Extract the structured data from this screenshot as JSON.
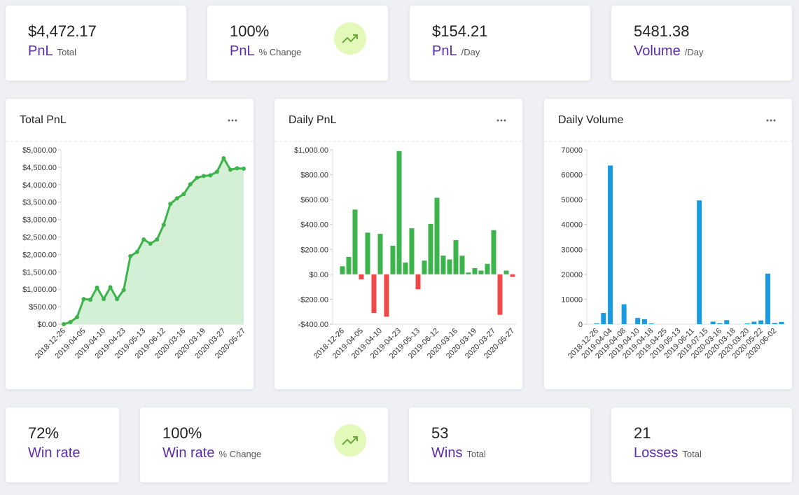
{
  "cards": [
    {
      "value": "$4,472.17",
      "label": "PnL",
      "sublabel": "Total"
    },
    {
      "value": "100%",
      "label": "PnL",
      "sublabel": "% Change",
      "icon": "trend-up"
    },
    {
      "value": "$154.21",
      "label": "PnL",
      "sublabel": "/Day"
    },
    {
      "value": "5481.38",
      "label": "Volume",
      "sublabel": "/Day"
    },
    {
      "value": "72%",
      "label": "Win rate"
    },
    {
      "value": "100%",
      "label": "Win rate",
      "sublabel": "% Change",
      "icon": "trend-up"
    },
    {
      "value": "53",
      "label": "Wins",
      "sublabel": "Total"
    },
    {
      "value": "21",
      "label": "Losses",
      "sublabel": "Total"
    }
  ],
  "chart_data": [
    {
      "type": "line",
      "title": "Total PnL",
      "color": "#3cb44b",
      "fill": "#d3f0d6",
      "categories": [
        "2018-12-26",
        null,
        null,
        "2019-04-05",
        null,
        null,
        "2019-04-10",
        null,
        null,
        "2019-04-23",
        null,
        null,
        "2019-05-13",
        null,
        null,
        "2019-06-12",
        null,
        null,
        "2020-03-16",
        null,
        null,
        "2020-03-19",
        null,
        null,
        "2020-03-27",
        null,
        null,
        "2020-05-27"
      ],
      "values": [
        0,
        60,
        200,
        720,
        700,
        1050,
        720,
        1060,
        720,
        980,
        1950,
        2070,
        2430,
        2310,
        2430,
        2850,
        3450,
        3610,
        3730,
        4010,
        4200,
        4250,
        4270,
        4370,
        4760,
        4430,
        4470,
        4460
      ],
      "ylim": [
        0,
        5000
      ],
      "yticks": [
        {
          "value": 0,
          "label": "$0.00"
        },
        {
          "value": 500,
          "label": "$500.00"
        },
        {
          "value": 1000,
          "label": "$1,000.00"
        },
        {
          "value": 1500,
          "label": "$1,500.00"
        },
        {
          "value": 2000,
          "label": "$2,000.00"
        },
        {
          "value": 2500,
          "label": "$2,500.00"
        },
        {
          "value": 3000,
          "label": "$3,000.00"
        },
        {
          "value": 3500,
          "label": "$3,500.00"
        },
        {
          "value": 4000,
          "label": "$4,000.00"
        },
        {
          "value": 4500,
          "label": "$4,500.00"
        },
        {
          "value": 5000,
          "label": "$5,000.00"
        }
      ]
    },
    {
      "type": "bar",
      "title": "Daily PnL",
      "color": "#3cb44b",
      "negative_color": "#f04848",
      "categories": [
        "2018-12-26",
        null,
        null,
        "2019-04-05",
        null,
        null,
        "2019-04-10",
        null,
        null,
        "2019-04-23",
        null,
        null,
        "2019-05-13",
        null,
        null,
        "2019-06-12",
        null,
        null,
        "2020-03-16",
        null,
        null,
        "2020-03-19",
        null,
        null,
        "2020-03-27",
        null,
        null,
        "2020-05-27"
      ],
      "values": [
        65,
        140,
        520,
        -40,
        335,
        -310,
        325,
        -340,
        230,
        990,
        95,
        370,
        -120,
        110,
        405,
        615,
        150,
        120,
        275,
        150,
        15,
        50,
        30,
        85,
        355,
        -325,
        30,
        -20
      ],
      "ylim": [
        -400,
        1000
      ],
      "yticks": [
        {
          "value": -400,
          "label": "-$400.00"
        },
        {
          "value": -200,
          "label": "-$200.00"
        },
        {
          "value": 0,
          "label": "$0.00"
        },
        {
          "value": 200,
          "label": "$200.00"
        },
        {
          "value": 400,
          "label": "$400.00"
        },
        {
          "value": 600,
          "label": "$600.00"
        },
        {
          "value": 800,
          "label": "$800.00"
        },
        {
          "value": 1000,
          "label": "$1,000.00"
        }
      ]
    },
    {
      "type": "bar",
      "title": "Daily Volume",
      "color": "#1a9ae0",
      "categories": [
        "2018-12-26",
        null,
        "2019-04-04",
        null,
        "2019-04-08",
        null,
        "2019-04-10",
        null,
        "2019-04-18",
        null,
        "2019-04-25",
        null,
        "2019-05-13",
        null,
        "2019-06-11",
        null,
        "2019-07-15",
        null,
        "2020-03-16",
        null,
        "2020-03-18",
        null,
        "2020-03-20",
        null,
        "2020-05-22",
        null,
        "2020-06-02",
        null
      ],
      "values": [
        300,
        4500,
        63700,
        0,
        8000,
        0,
        2500,
        2000,
        300,
        0,
        0,
        0,
        0,
        0,
        0,
        49700,
        0,
        1000,
        400,
        1600,
        0,
        0,
        300,
        1000,
        1500,
        20300,
        500,
        900
      ],
      "ylim": [
        0,
        70000
      ],
      "yticks": [
        0,
        10000,
        20000,
        30000,
        40000,
        50000,
        60000,
        70000
      ]
    }
  ]
}
